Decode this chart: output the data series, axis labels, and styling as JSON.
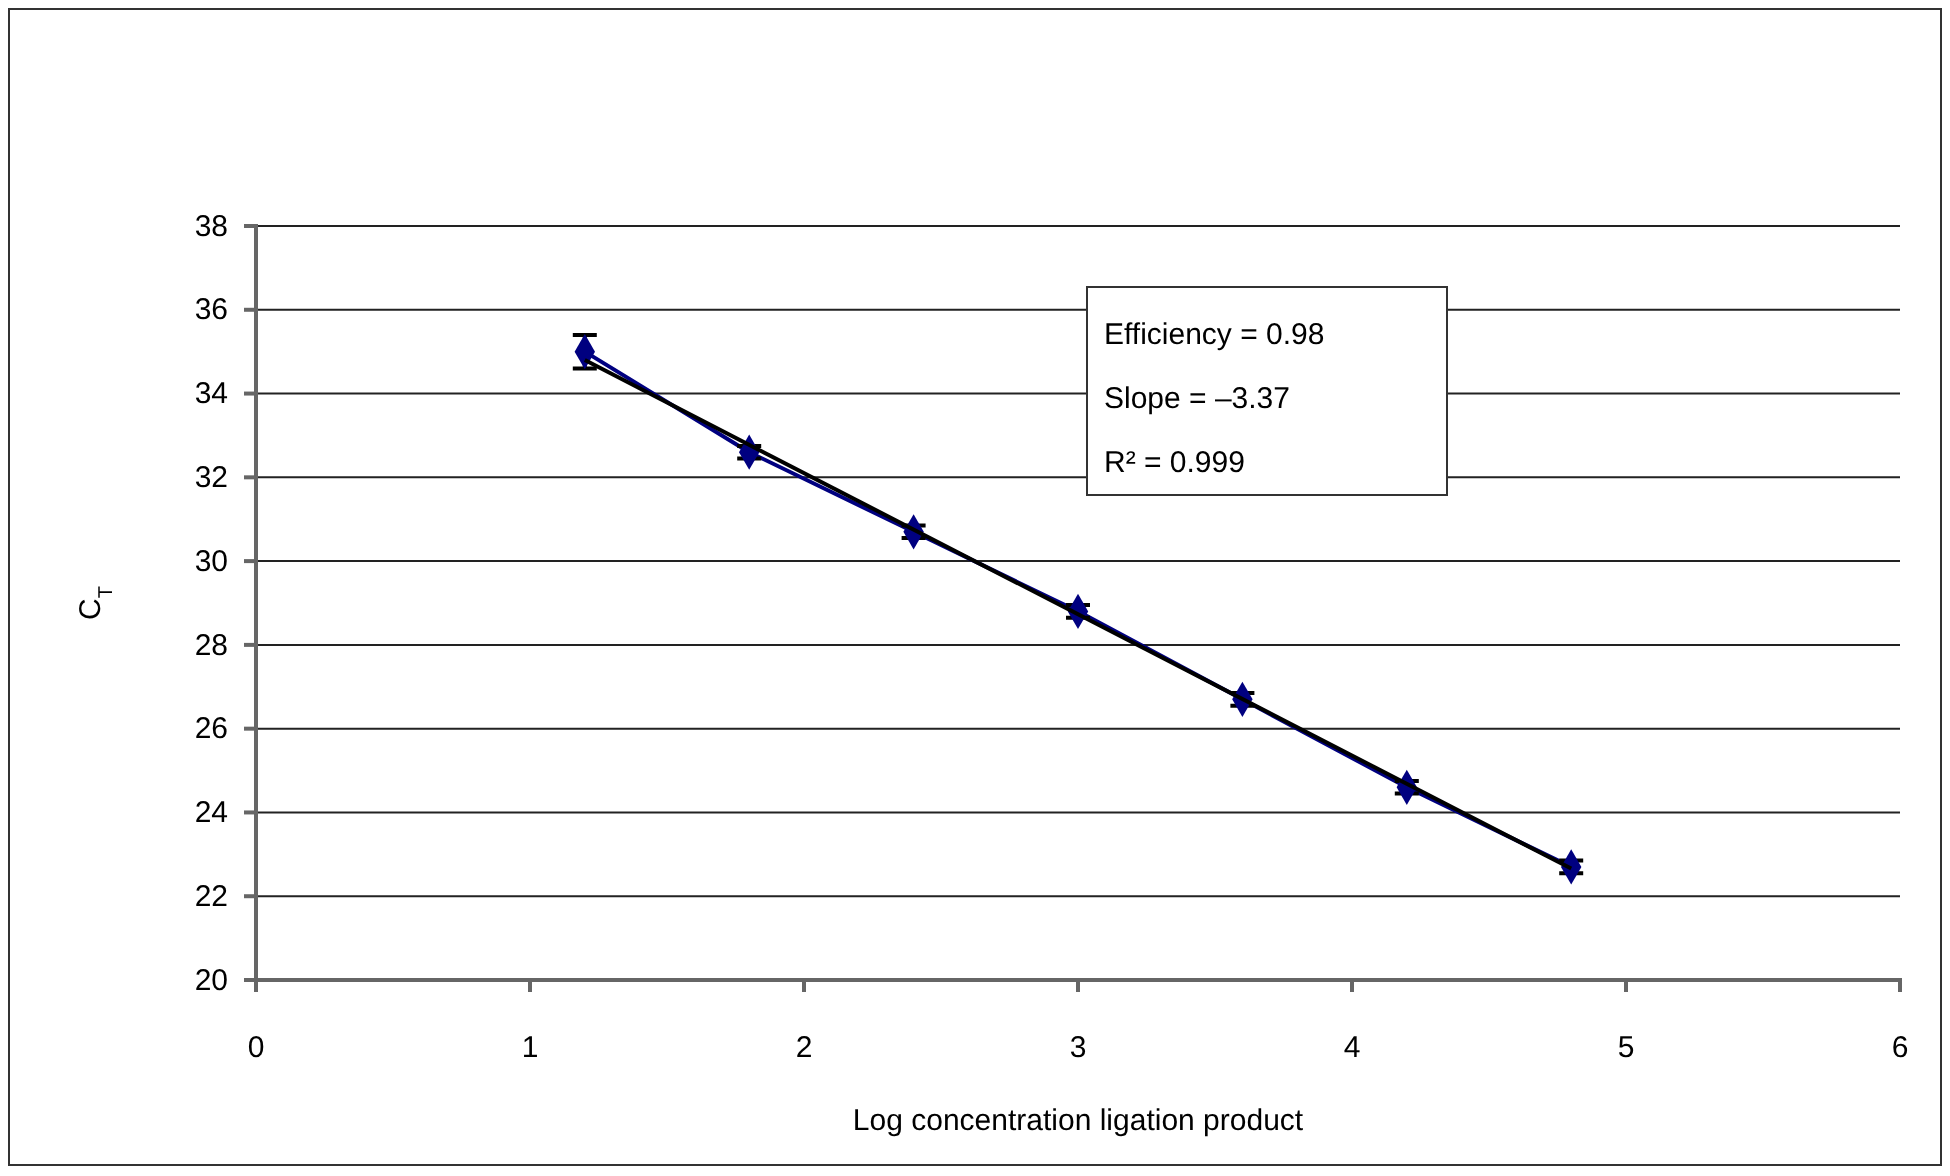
{
  "chart_data": {
    "type": "line",
    "xlabel": "Log concentration ligation product",
    "ylabel": "C$_{T}$",
    "xlim": [
      0,
      6
    ],
    "xticks": [
      0,
      1,
      2,
      3,
      4,
      5,
      6
    ],
    "ylim": [
      20,
      38
    ],
    "yticks": [
      20,
      22,
      24,
      26,
      28,
      30,
      32,
      34,
      36,
      38
    ],
    "grid": "y",
    "series": [
      {
        "color": "#000080",
        "marker": "diamond",
        "x": [
          1.2,
          1.8,
          2.4,
          3.0,
          3.6,
          4.2,
          4.8
        ],
        "values": [
          35.0,
          32.6,
          30.7,
          28.8,
          26.7,
          24.6,
          22.7
        ],
        "errors": [
          0.4,
          0.15,
          0.15,
          0.15,
          0.15,
          0.15,
          0.15
        ]
      },
      {
        "color": "#000000",
        "marker": "none",
        "x": [
          1.2,
          4.8
        ],
        "values": [
          34.8,
          22.66
        ]
      }
    ],
    "annotations": [
      "Efficiency = 0.98",
      "Slope = –3.37",
      "R² = 0.999"
    ]
  }
}
